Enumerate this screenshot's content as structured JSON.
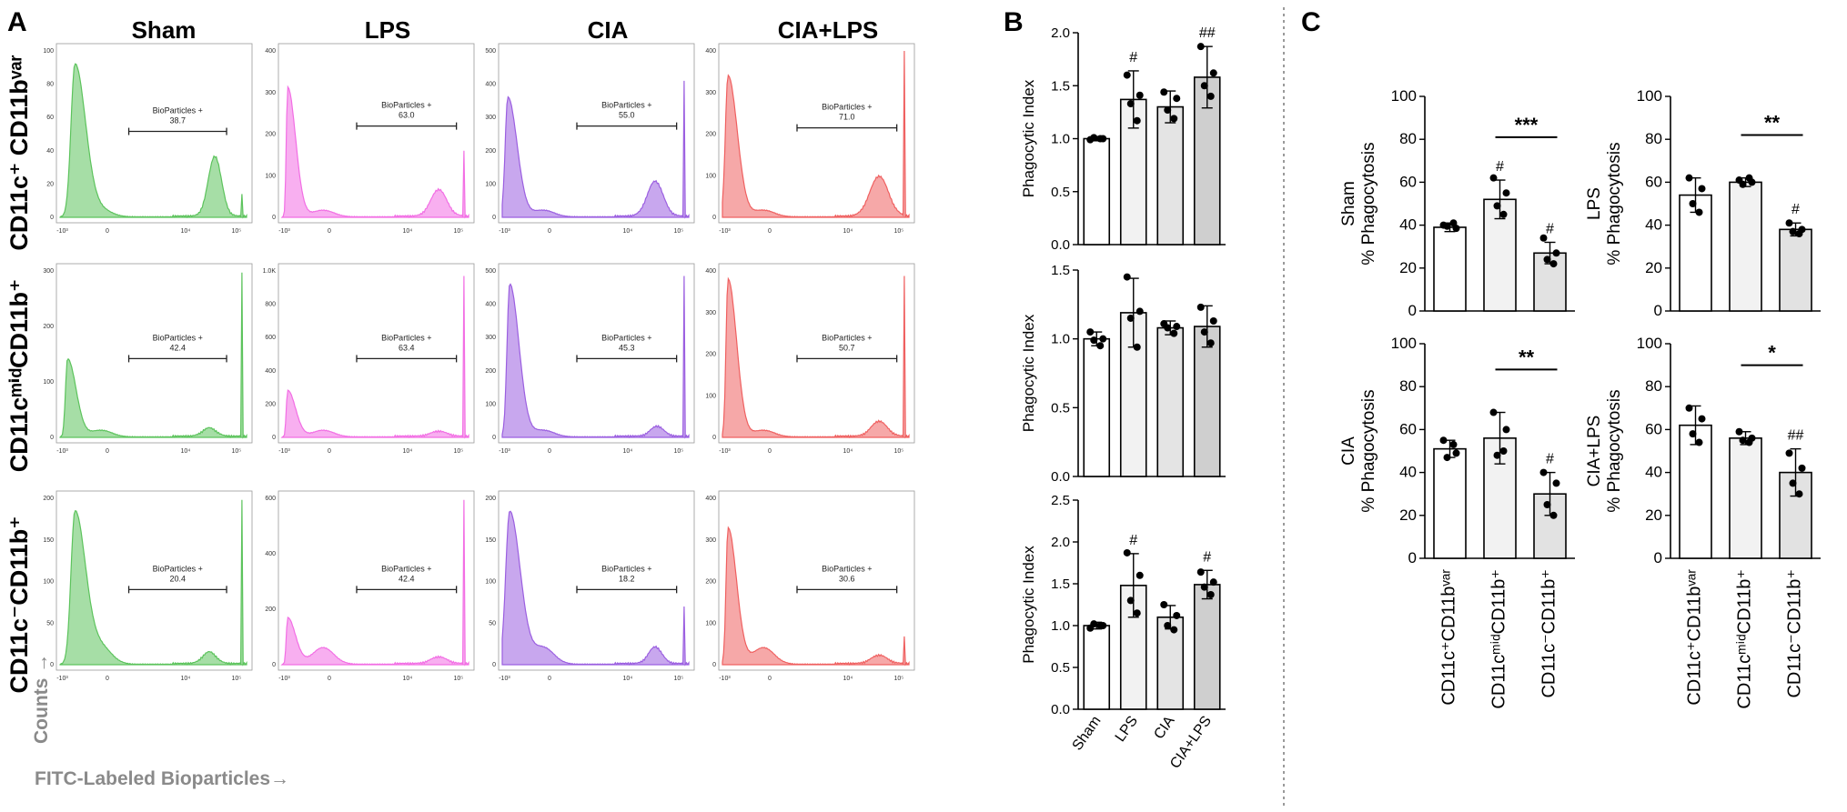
{
  "panel_labels": {
    "a": "A",
    "b": "B",
    "c": "C"
  },
  "flow_axis": {
    "y_label": "Counts →",
    "x_label": "FITC-Labeled Bioparticles→"
  },
  "chart_data": [
    {
      "type": "area",
      "panel": "A",
      "title": "Flow cytometry histograms of FITC-labeled bioparticle uptake",
      "columns": [
        "Sham",
        "LPS",
        "CIA",
        "CIA+LPS"
      ],
      "rows": [
        "CD11c⁺ CD11bᵛᵃʳ",
        "CD11cᵐⁱᵈCD11b⁺",
        "CD11c⁻CD11b⁺"
      ],
      "column_colors": [
        "#5cc35c",
        "#f26ee4",
        "#9b5fe0",
        "#ef6060"
      ],
      "gate_label": "BioParticles +",
      "x_tick_labels": [
        "-10³",
        "0",
        "10⁴",
        "10⁵"
      ],
      "gate_values": [
        [
          "38.7",
          "63.0",
          "55.0",
          "71.0"
        ],
        [
          "42.4",
          "63.4",
          "45.3",
          "50.7"
        ],
        [
          "20.4",
          "42.4",
          "18.2",
          "30.6"
        ]
      ],
      "y_ticks": [
        [
          [
            "0",
            "20",
            "40",
            "60",
            "80",
            "100"
          ],
          [
            "0",
            "100",
            "200",
            "300",
            "400"
          ],
          [
            "0",
            "100",
            "200",
            "300",
            "400",
            "500"
          ],
          [
            "0",
            "100",
            "200",
            "300",
            "400"
          ]
        ],
        [
          [
            "0",
            "100",
            "200",
            "300"
          ],
          [
            "0",
            "200",
            "400",
            "600",
            "800",
            "1.0K"
          ],
          [
            "0",
            "100",
            "200",
            "300",
            "400",
            "500"
          ],
          [
            "0",
            "100",
            "200",
            "300",
            "400"
          ]
        ],
        [
          [
            "0",
            "50",
            "100",
            "150",
            "200"
          ],
          [
            "0",
            "200",
            "400",
            "600"
          ],
          [
            "0",
            "50",
            "100",
            "150",
            "200"
          ],
          [
            "0",
            "100",
            "200",
            "300",
            "400"
          ]
        ]
      ]
    },
    {
      "type": "bar",
      "panel": "B",
      "ylabel": "Phagocytic Index",
      "categories": [
        "Sham",
        "LPS",
        "CIA",
        "CIA+LPS"
      ],
      "bar_colors": [
        "#ffffff",
        "#f2f2f2",
        "#e4e4e4",
        "#cfcfcf"
      ],
      "subplots": [
        {
          "ylim": [
            0,
            2.0
          ],
          "yticks": [
            "0.0",
            "0.5",
            "1.0",
            "1.5",
            "2.0"
          ],
          "values": [
            1.0,
            1.37,
            1.3,
            1.58
          ],
          "errors": [
            0.02,
            0.27,
            0.15,
            0.29
          ],
          "points": [
            [
              0.99,
              1.0,
              1.01,
              1.0
            ],
            [
              1.6,
              1.41,
              1.33,
              1.17
            ],
            [
              1.44,
              1.38,
              1.27,
              1.19
            ],
            [
              1.87,
              1.62,
              1.5,
              1.4
            ]
          ],
          "annotations": [
            "",
            "#",
            "",
            "##"
          ]
        },
        {
          "ylim": [
            0,
            1.5
          ],
          "yticks": [
            "0.0",
            "0.5",
            "1.0",
            "1.5"
          ],
          "values": [
            1.0,
            1.19,
            1.08,
            1.09
          ],
          "errors": [
            0.05,
            0.25,
            0.05,
            0.15
          ],
          "points": [
            [
              1.05,
              1.0,
              0.99,
              0.95
            ],
            [
              1.45,
              1.2,
              1.15,
              0.94
            ],
            [
              1.11,
              1.09,
              1.08,
              1.04
            ],
            [
              1.23,
              1.13,
              1.05,
              0.97
            ]
          ],
          "annotations": [
            "",
            "",
            "",
            ""
          ]
        },
        {
          "ylim": [
            0,
            2.5
          ],
          "yticks": [
            "0.0",
            "0.5",
            "1.0",
            "1.5",
            "2.0",
            "2.5"
          ],
          "values": [
            1.0,
            1.48,
            1.1,
            1.49
          ],
          "errors": [
            0.04,
            0.38,
            0.14,
            0.17
          ],
          "points": [
            [
              0.97,
              1.0,
              1.02,
              1.0
            ],
            [
              1.87,
              1.6,
              1.3,
              1.15
            ],
            [
              1.25,
              1.12,
              1.0,
              0.95
            ],
            [
              1.64,
              1.52,
              1.46,
              1.37
            ]
          ],
          "annotations": [
            "",
            "#",
            "",
            "#"
          ]
        }
      ]
    },
    {
      "type": "bar",
      "panel": "C",
      "ylabel": "% Phagocytosis",
      "categories": [
        "CD11c⁺CD11bᵛᵃʳ",
        "CD11cᵐⁱᵈCD11b⁺",
        "CD11c⁻CD11b⁺"
      ],
      "bar_colors": [
        "#ffffff",
        "#f2f2f2",
        "#e2e2e2"
      ],
      "ylim": [
        0,
        100
      ],
      "yticks": [
        "0",
        "20",
        "40",
        "60",
        "80",
        "100"
      ],
      "subplots": [
        {
          "group": "Sham",
          "values": [
            39,
            52,
            27
          ],
          "errors": [
            2,
            9,
            5
          ],
          "points": [
            [
              40,
              38.5,
              39.5,
              41
            ],
            [
              62,
              55,
              49,
              45
            ],
            [
              34,
              27,
              24,
              22
            ]
          ],
          "annotations": [
            "",
            "#",
            "#"
          ],
          "significance": {
            "label": "***",
            "from": 1,
            "to": 2
          }
        },
        {
          "group": "LPS",
          "values": [
            54,
            60,
            38
          ],
          "errors": [
            8,
            2,
            3
          ],
          "points": [
            [
              62,
              57,
              50,
              46
            ],
            [
              61,
              60,
              59,
              62
            ],
            [
              41,
              38,
              37,
              36
            ]
          ],
          "annotations": [
            "",
            "",
            "#"
          ],
          "significance": {
            "label": "**",
            "from": 1,
            "to": 2
          }
        },
        {
          "group": "CIA",
          "values": [
            51,
            56,
            30
          ],
          "errors": [
            4,
            12,
            10
          ],
          "points": [
            [
              55,
              49,
              47,
              53
            ],
            [
              68,
              60,
              48,
              50
            ],
            [
              40,
              35,
              25,
              20
            ]
          ],
          "annotations": [
            "",
            "",
            "#"
          ],
          "significance": {
            "label": "**",
            "from": 1,
            "to": 2
          }
        },
        {
          "group": "CIA+LPS",
          "values": [
            62,
            56,
            40
          ],
          "errors": [
            9,
            3,
            11
          ],
          "points": [
            [
              70,
              65,
              58,
              54
            ],
            [
              59,
              56,
              55,
              54
            ],
            [
              49,
              42,
              35,
              30
            ]
          ],
          "annotations": [
            "",
            "",
            "##"
          ],
          "significance": {
            "label": "*",
            "from": 1,
            "to": 2
          }
        }
      ]
    }
  ]
}
